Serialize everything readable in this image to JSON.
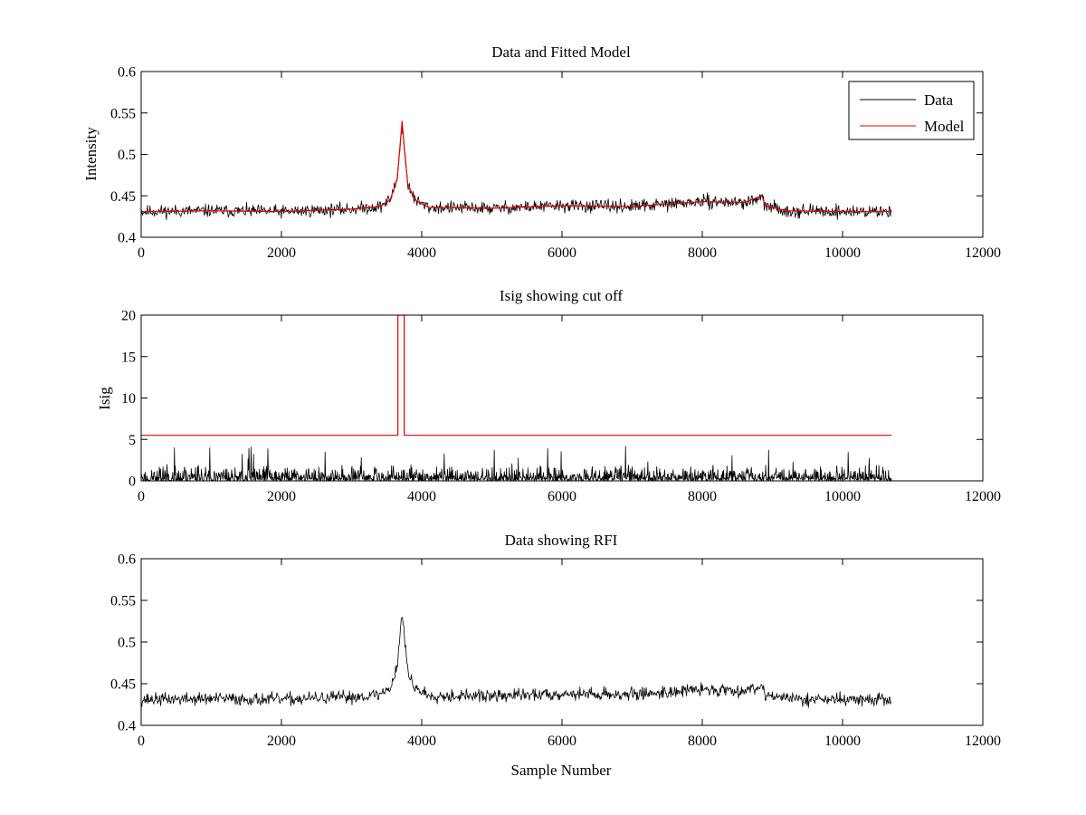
{
  "chart_data": [
    {
      "type": "line",
      "title": "Data and Fitted Model",
      "xlabel": "",
      "ylabel": "Intensity",
      "xlim": [
        0,
        12000
      ],
      "ylim": [
        0.4,
        0.6
      ],
      "xticks": [
        0,
        2000,
        4000,
        6000,
        8000,
        10000,
        12000
      ],
      "xtick_labels": [
        "0",
        "2000",
        "4000",
        "6000",
        "8000",
        "10000",
        "12000"
      ],
      "yticks": [
        0.4,
        0.45,
        0.5,
        0.55,
        0.6
      ],
      "ytick_labels": [
        "0.4",
        "0.45",
        "0.5",
        "0.55",
        "0.6"
      ],
      "grid": false,
      "legend": {
        "placement": "top-right",
        "entries": [
          "Data",
          "Model"
        ]
      },
      "series": [
        {
          "name": "Data",
          "color": "#000000",
          "kind": "noisy",
          "noise": 0.0075,
          "seed": 11,
          "x": [
            0,
            1000,
            2000,
            3000,
            3400,
            3550,
            3650,
            3700,
            3720,
            3760,
            3800,
            3900,
            4100,
            5000,
            6000,
            7000,
            8000,
            8600,
            8850,
            8900,
            9200,
            10000,
            10700
          ],
          "y": [
            0.431,
            0.432,
            0.431,
            0.434,
            0.437,
            0.445,
            0.47,
            0.52,
            0.535,
            0.5,
            0.465,
            0.445,
            0.436,
            0.435,
            0.438,
            0.437,
            0.443,
            0.442,
            0.447,
            0.438,
            0.432,
            0.431,
            0.431
          ]
        },
        {
          "name": "Model",
          "color": "#e60000",
          "kind": "line",
          "x": [
            0,
            1000,
            2000,
            3000,
            3400,
            3550,
            3650,
            3700,
            3720,
            3760,
            3800,
            3900,
            4100,
            5000,
            6000,
            7000,
            8000,
            8600,
            8850,
            8900,
            9200,
            10000,
            10700
          ],
          "y": [
            0.431,
            0.432,
            0.431,
            0.434,
            0.437,
            0.445,
            0.47,
            0.52,
            0.54,
            0.5,
            0.465,
            0.445,
            0.436,
            0.435,
            0.438,
            0.437,
            0.443,
            0.442,
            0.45,
            0.438,
            0.432,
            0.431,
            0.431
          ]
        }
      ]
    },
    {
      "type": "line",
      "title": "Isig showing cut off",
      "xlabel": "",
      "ylabel": "Isig",
      "xlim": [
        0,
        12000
      ],
      "ylim": [
        0,
        20
      ],
      "xticks": [
        0,
        2000,
        4000,
        6000,
        8000,
        10000,
        12000
      ],
      "xtick_labels": [
        "0",
        "2000",
        "4000",
        "6000",
        "8000",
        "10000",
        "12000"
      ],
      "yticks": [
        0,
        5,
        10,
        15,
        20
      ],
      "ytick_labels": [
        "0",
        "5",
        "10",
        "15",
        "20"
      ],
      "grid": false,
      "series": [
        {
          "color": "#000000",
          "kind": "spiky",
          "typical_max": 1.6,
          "peak_max": 4.2,
          "seed": 23,
          "x": [
            0,
            10700
          ],
          "y": [
            0,
            0
          ]
        },
        {
          "color": "#e60000",
          "kind": "line",
          "x": [
            0,
            3660,
            3660,
            3750,
            3750,
            10700
          ],
          "y": [
            5.5,
            5.5,
            20,
            20,
            5.5,
            5.5
          ]
        }
      ]
    },
    {
      "type": "line",
      "title": "Data showing RFI",
      "xlabel": "Sample Number",
      "ylabel": "",
      "xlim": [
        0,
        12000
      ],
      "ylim": [
        0.4,
        0.6
      ],
      "xticks": [
        0,
        2000,
        4000,
        6000,
        8000,
        10000,
        12000
      ],
      "xtick_labels": [
        "0",
        "2000",
        "4000",
        "6000",
        "8000",
        "10000",
        "12000"
      ],
      "yticks": [
        0.4,
        0.45,
        0.5,
        0.55,
        0.6
      ],
      "ytick_labels": [
        "0.4",
        "0.45",
        "0.5",
        "0.55",
        "0.6"
      ],
      "grid": false,
      "series": [
        {
          "color": "#000000",
          "kind": "noisy",
          "noise": 0.0075,
          "seed": 37,
          "x": [
            0,
            1000,
            2000,
            3000,
            3400,
            3550,
            3650,
            3700,
            3720,
            3760,
            3800,
            3900,
            4100,
            5000,
            6000,
            7000,
            8000,
            8600,
            8850,
            8900,
            9200,
            10000,
            10700
          ],
          "y": [
            0.431,
            0.432,
            0.431,
            0.434,
            0.437,
            0.445,
            0.47,
            0.52,
            0.535,
            0.5,
            0.465,
            0.445,
            0.436,
            0.435,
            0.438,
            0.437,
            0.443,
            0.442,
            0.447,
            0.438,
            0.432,
            0.431,
            0.431
          ]
        }
      ]
    }
  ]
}
